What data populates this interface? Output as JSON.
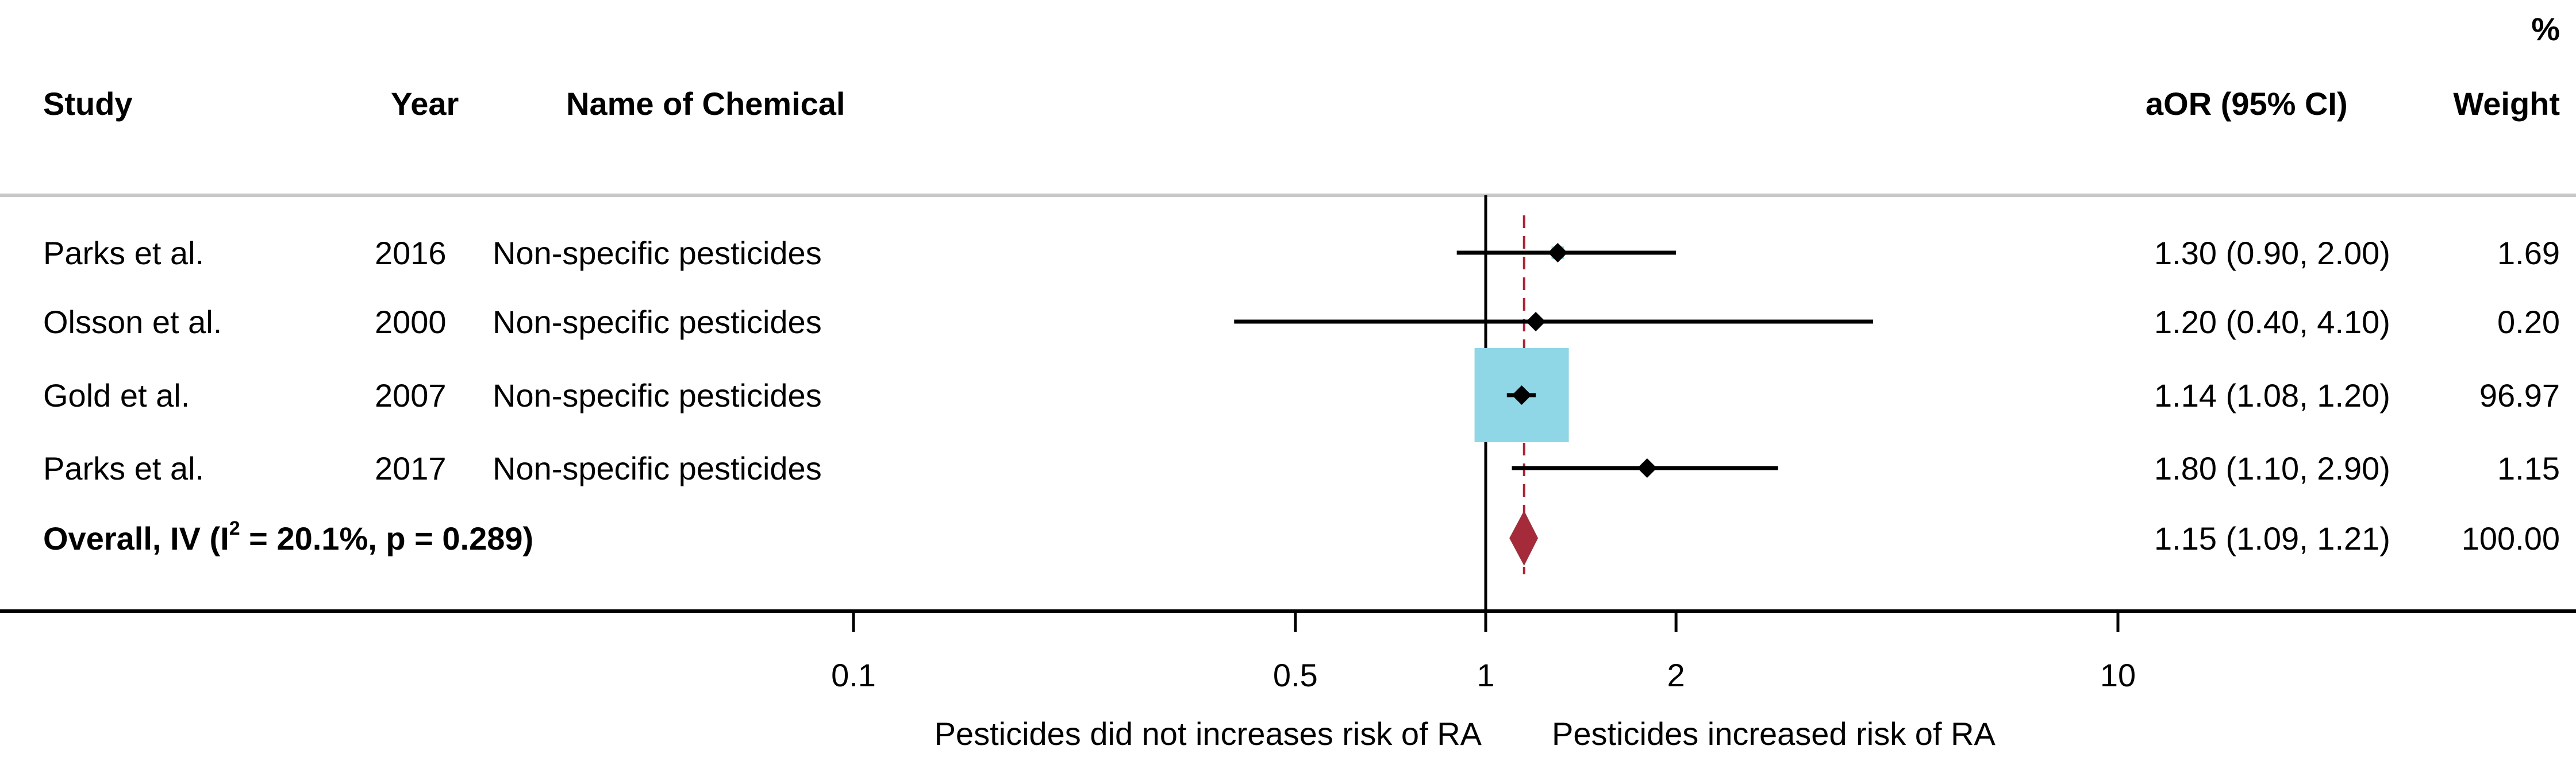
{
  "colors": {
    "text": "#000000",
    "rule": "#c8c8c8",
    "weight_box": "#8fd6e6",
    "overall_diamond": "#a52a3a",
    "ref_line": "#b22234"
  },
  "headers": {
    "study": "Study",
    "year": "Year",
    "chemical": "Name of Chemical",
    "aor": "aOR (95% CI)",
    "weight_pct": "%",
    "weight": "Weight"
  },
  "chart_data": {
    "type": "forest",
    "x_scale": "log",
    "xlim": [
      0.04,
      40
    ],
    "x_ticks": [
      0.1,
      0.5,
      1,
      2,
      10
    ],
    "x_tick_labels": [
      "0.1",
      "0.5",
      "1",
      "2",
      "10"
    ],
    "null_line": 1,
    "xlabel_left": "Pesticides did not increases risk of RA",
    "xlabel_right": "Pesticides increased risk of RA",
    "studies": [
      {
        "study": "Parks et al.",
        "year": "2016",
        "chemical": "Non-specific  pesticides",
        "or": 1.3,
        "lo": 0.9,
        "hi": 2.0,
        "ci_text": "1.30 (0.90, 2.00)",
        "weight": 1.69,
        "weight_text": "1.69"
      },
      {
        "study": "Olsson et al.",
        "year": "2000",
        "chemical": "Non-specific  pesticides",
        "or": 1.2,
        "lo": 0.4,
        "hi": 4.1,
        "ci_text": "1.20 (0.40, 4.10)",
        "weight": 0.2,
        "weight_text": "0.20"
      },
      {
        "study": "Gold et al.",
        "year": "2007",
        "chemical": "Non-specific  pesticides",
        "or": 1.14,
        "lo": 1.08,
        "hi": 1.2,
        "ci_text": "1.14 (1.08, 1.20)",
        "weight": 96.97,
        "weight_text": "96.97"
      },
      {
        "study": "Parks et al.",
        "year": "2017",
        "chemical": "Non-specific  pesticides",
        "or": 1.8,
        "lo": 1.1,
        "hi": 2.9,
        "ci_text": "1.80 (1.10, 2.90)",
        "weight": 1.15,
        "weight_text": "1.15"
      }
    ],
    "overall": {
      "label_main": "Overall, IV (I",
      "label_sup": "2",
      "label_rest": " = 20.1%, p = 0.289)",
      "or": 1.15,
      "lo": 1.09,
      "hi": 1.21,
      "ci_text": "1.15 (1.09, 1.21)",
      "weight": 100.0,
      "weight_text": "100.00"
    }
  }
}
